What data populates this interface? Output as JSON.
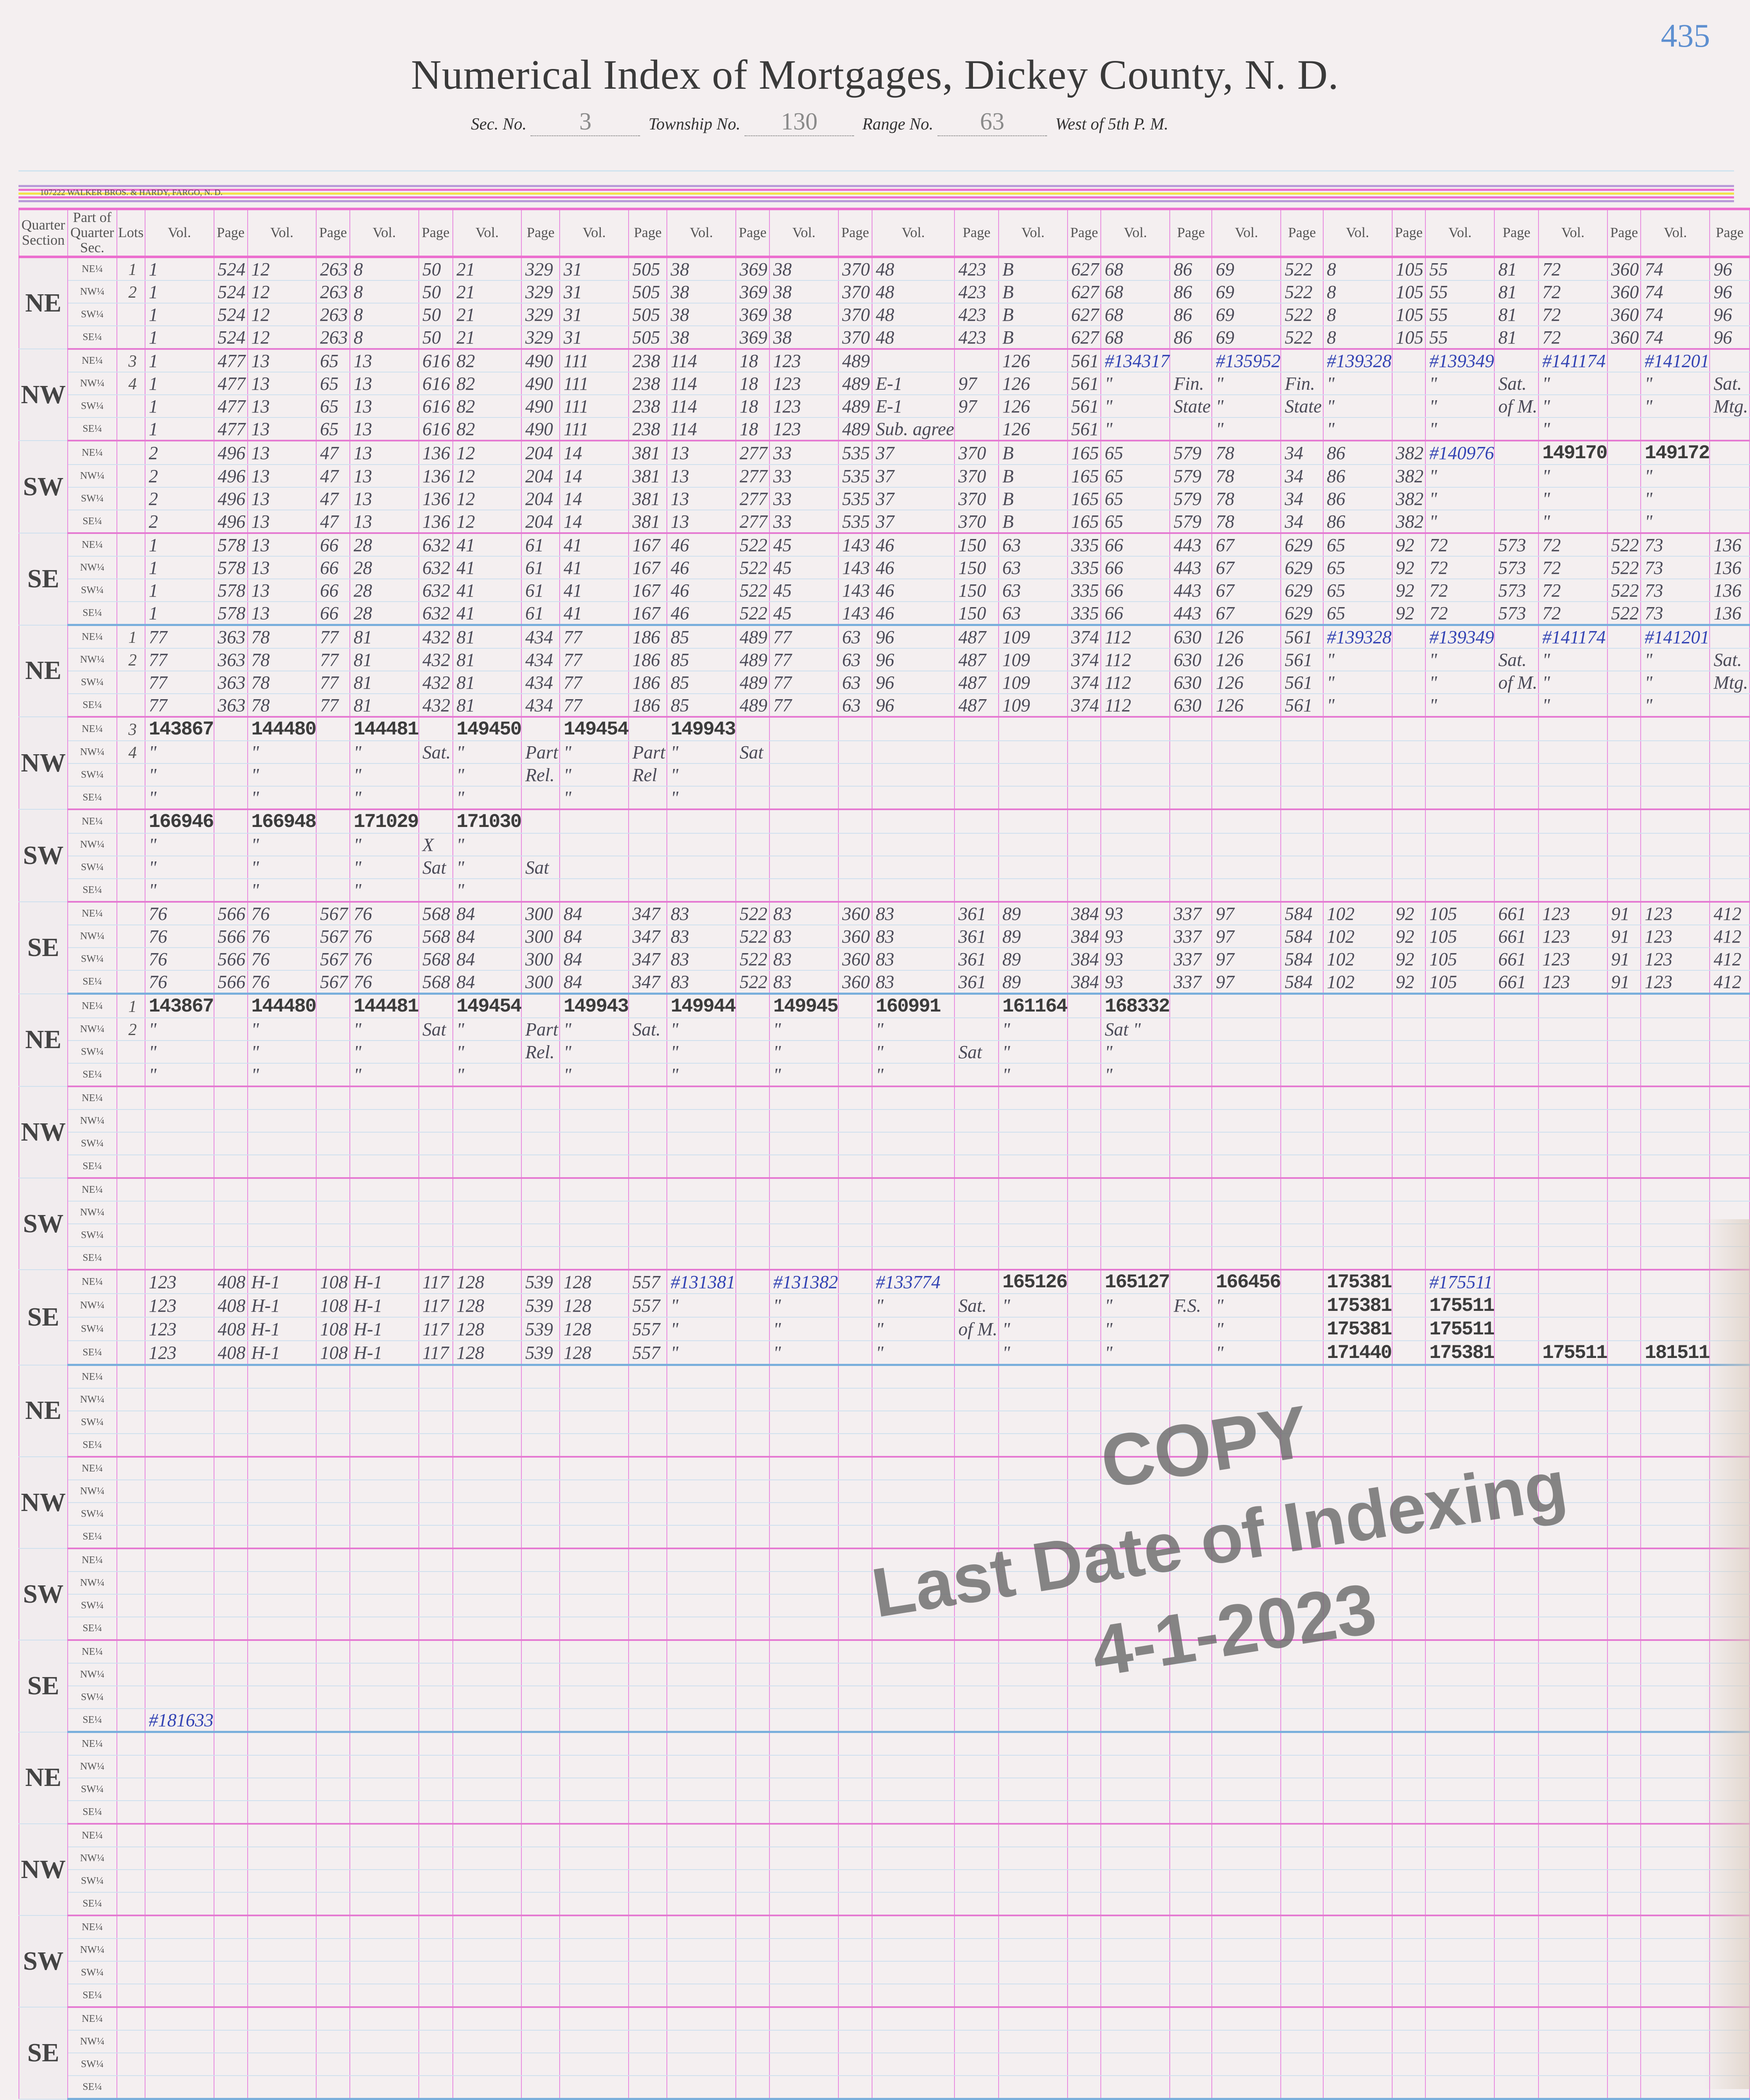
{
  "page_number": "435",
  "header": {
    "title": "Numerical Index of Mortgages, Dickey County, N. D.",
    "sec_label": "Sec. No.",
    "sec_value": "3",
    "township_label": "Township No.",
    "township_value": "130",
    "range_label": "Range No.",
    "range_value": "63",
    "meridian": "West of 5th P. M."
  },
  "printer": "107222   WALKER BROS. & HARDY, FARGO, N. D.",
  "stripe_colors": [
    "#b89ad8",
    "#ec6fcf",
    "#f2e24a",
    "#ec6fcf",
    "#b89ad8"
  ],
  "columns": {
    "quarter_section": "Quarter Section",
    "part": "Part of Quarter Sec.",
    "lots": "Lots",
    "vol": "Vol.",
    "page": "Page"
  },
  "parts": [
    "NE¼",
    "NW¼",
    "SW¼",
    "SE¼"
  ],
  "blocks": [
    {
      "quarter": "NE",
      "rows": [
        [
          "1",
          "1",
          "524",
          "12",
          "263",
          "8",
          "50",
          "21",
          "329",
          "31",
          "505",
          "38",
          "369",
          "38",
          "370",
          "48",
          "423",
          "B",
          "627",
          "68",
          "86",
          "69",
          "522",
          "8",
          "105",
          "55",
          "81",
          "72",
          "360",
          "74",
          "96"
        ],
        [
          "2",
          "1",
          "524",
          "12",
          "263",
          "8",
          "50",
          "21",
          "329",
          "31",
          "505",
          "38",
          "369",
          "38",
          "370",
          "48",
          "423",
          "B",
          "627",
          "68",
          "86",
          "69",
          "522",
          "8",
          "105",
          "55",
          "81",
          "72",
          "360",
          "74",
          "96"
        ],
        [
          "",
          "1",
          "524",
          "12",
          "263",
          "8",
          "50",
          "21",
          "329",
          "31",
          "505",
          "38",
          "369",
          "38",
          "370",
          "48",
          "423",
          "B",
          "627",
          "68",
          "86",
          "69",
          "522",
          "8",
          "105",
          "55",
          "81",
          "72",
          "360",
          "74",
          "96"
        ],
        [
          "",
          "1",
          "524",
          "12",
          "263",
          "8",
          "50",
          "21",
          "329",
          "31",
          "505",
          "38",
          "369",
          "38",
          "370",
          "48",
          "423",
          "B",
          "627",
          "68",
          "86",
          "69",
          "522",
          "8",
          "105",
          "55",
          "81",
          "72",
          "360",
          "74",
          "96"
        ]
      ]
    },
    {
      "quarter": "NW",
      "rows": [
        [
          "3",
          "1",
          "477",
          "13",
          "65",
          "13",
          "616",
          "82",
          "490",
          "111",
          "238",
          "114",
          "18",
          "123",
          "489",
          "",
          "",
          "126",
          "561",
          "#134317",
          "",
          "#135952",
          "",
          "#139328",
          "",
          "#139349",
          "",
          "#141174",
          "",
          "#141201",
          ""
        ],
        [
          "4",
          "1",
          "477",
          "13",
          "65",
          "13",
          "616",
          "82",
          "490",
          "111",
          "238",
          "114",
          "18",
          "123",
          "489",
          "E-1",
          "97",
          "126",
          "561",
          "\"",
          "Fin.",
          "\"",
          "Fin.",
          "\"",
          "",
          "\"",
          "Sat.",
          "\"",
          "",
          "\"",
          "Sat."
        ],
        [
          "",
          "1",
          "477",
          "13",
          "65",
          "13",
          "616",
          "82",
          "490",
          "111",
          "238",
          "114",
          "18",
          "123",
          "489",
          "E-1",
          "97",
          "126",
          "561",
          "\"",
          "State",
          "\"",
          "State",
          "\"",
          "",
          "\"",
          "of M.",
          "\"",
          "",
          "\"",
          "Mtg."
        ],
        [
          "",
          "1",
          "477",
          "13",
          "65",
          "13",
          "616",
          "82",
          "490",
          "111",
          "238",
          "114",
          "18",
          "123",
          "489",
          "Sub. agree",
          "",
          "126",
          "561",
          "\"",
          "",
          "\"",
          "",
          "\"",
          "",
          "\"",
          "",
          "\"",
          "",
          ""
        ]
      ]
    },
    {
      "quarter": "SW",
      "rows": [
        [
          "",
          "2",
          "496",
          "13",
          "47",
          "13",
          "136",
          "12",
          "204",
          "14",
          "381",
          "13",
          "277",
          "33",
          "535",
          "37",
          "370",
          "B",
          "165",
          "65",
          "579",
          "78",
          "34",
          "86",
          "382",
          "#140976",
          "",
          "149170",
          "",
          "149172",
          ""
        ],
        [
          "",
          "2",
          "496",
          "13",
          "47",
          "13",
          "136",
          "12",
          "204",
          "14",
          "381",
          "13",
          "277",
          "33",
          "535",
          "37",
          "370",
          "B",
          "165",
          "65",
          "579",
          "78",
          "34",
          "86",
          "382",
          "\"",
          "",
          "\"",
          "",
          "\"",
          ""
        ],
        [
          "",
          "2",
          "496",
          "13",
          "47",
          "13",
          "136",
          "12",
          "204",
          "14",
          "381",
          "13",
          "277",
          "33",
          "535",
          "37",
          "370",
          "B",
          "165",
          "65",
          "579",
          "78",
          "34",
          "86",
          "382",
          "\"",
          "",
          "\"",
          "",
          "\"",
          ""
        ],
        [
          "",
          "2",
          "496",
          "13",
          "47",
          "13",
          "136",
          "12",
          "204",
          "14",
          "381",
          "13",
          "277",
          "33",
          "535",
          "37",
          "370",
          "B",
          "165",
          "65",
          "579",
          "78",
          "34",
          "86",
          "382",
          "\"",
          "",
          "\"",
          "",
          "\"",
          ""
        ]
      ]
    },
    {
      "quarter": "SE",
      "rows": [
        [
          "",
          "1",
          "578",
          "13",
          "66",
          "28",
          "632",
          "41",
          "61",
          "41",
          "167",
          "46",
          "522",
          "45",
          "143",
          "46",
          "150",
          "63",
          "335",
          "66",
          "443",
          "67",
          "629",
          "65",
          "92",
          "72",
          "573",
          "72",
          "522",
          "73",
          "136"
        ],
        [
          "",
          "1",
          "578",
          "13",
          "66",
          "28",
          "632",
          "41",
          "61",
          "41",
          "167",
          "46",
          "522",
          "45",
          "143",
          "46",
          "150",
          "63",
          "335",
          "66",
          "443",
          "67",
          "629",
          "65",
          "92",
          "72",
          "573",
          "72",
          "522",
          "73",
          "136"
        ],
        [
          "",
          "1",
          "578",
          "13",
          "66",
          "28",
          "632",
          "41",
          "61",
          "41",
          "167",
          "46",
          "522",
          "45",
          "143",
          "46",
          "150",
          "63",
          "335",
          "66",
          "443",
          "67",
          "629",
          "65",
          "92",
          "72",
          "573",
          "72",
          "522",
          "73",
          "136"
        ],
        [
          "",
          "1",
          "578",
          "13",
          "66",
          "28",
          "632",
          "41",
          "61",
          "41",
          "167",
          "46",
          "522",
          "45",
          "143",
          "46",
          "150",
          "63",
          "335",
          "66",
          "443",
          "67",
          "629",
          "65",
          "92",
          "72",
          "573",
          "72",
          "522",
          "73",
          "136"
        ]
      ]
    },
    {
      "quarter": "NE",
      "rows": [
        [
          "1",
          "77",
          "363",
          "78",
          "77",
          "81",
          "432",
          "81",
          "434",
          "77",
          "186",
          "85",
          "489",
          "77",
          "63",
          "96",
          "487",
          "109",
          "374",
          "112",
          "630",
          "126",
          "561",
          "#139328",
          "",
          "#139349",
          "",
          "#141174",
          "",
          "#141201",
          ""
        ],
        [
          "2",
          "77",
          "363",
          "78",
          "77",
          "81",
          "432",
          "81",
          "434",
          "77",
          "186",
          "85",
          "489",
          "77",
          "63",
          "96",
          "487",
          "109",
          "374",
          "112",
          "630",
          "126",
          "561",
          "\"",
          "",
          "\"",
          "Sat.",
          "\"",
          "",
          "\"",
          "Sat."
        ],
        [
          "",
          "77",
          "363",
          "78",
          "77",
          "81",
          "432",
          "81",
          "434",
          "77",
          "186",
          "85",
          "489",
          "77",
          "63",
          "96",
          "487",
          "109",
          "374",
          "112",
          "630",
          "126",
          "561",
          "\"",
          "",
          "\"",
          "of M.",
          "\"",
          "",
          "\"",
          "Mtg."
        ],
        [
          "",
          "77",
          "363",
          "78",
          "77",
          "81",
          "432",
          "81",
          "434",
          "77",
          "186",
          "85",
          "489",
          "77",
          "63",
          "96",
          "487",
          "109",
          "374",
          "112",
          "630",
          "126",
          "561",
          "\"",
          "",
          "\"",
          "",
          "\"",
          "",
          "\"",
          ""
        ]
      ]
    },
    {
      "quarter": "NW",
      "rows": [
        [
          "3",
          "143867",
          "",
          "144480",
          "",
          "144481",
          "",
          "149450",
          "",
          "149454",
          "",
          "149943",
          ""
        ],
        [
          "4",
          "\"",
          "",
          "\"",
          "",
          "\"",
          "Sat.",
          "\"",
          "Part",
          "\"",
          "Part",
          "\"",
          "Sat"
        ],
        [
          "",
          "\"",
          "",
          "\"",
          "",
          "\"",
          "",
          "\"",
          "Rel.",
          "\"",
          "Rel",
          "\"",
          ""
        ],
        [
          "",
          "\"",
          "",
          "\"",
          "",
          "\"",
          "",
          "\"",
          "",
          "\"",
          "",
          "\"",
          ""
        ]
      ]
    },
    {
      "quarter": "SW",
      "rows": [
        [
          "",
          "166946",
          "",
          "166948",
          "",
          "171029",
          "",
          "171030",
          ""
        ],
        [
          "",
          "\"",
          "",
          "\"",
          "",
          "\"",
          "X",
          "\"",
          ""
        ],
        [
          "",
          "\"",
          "",
          "\"",
          "",
          "\"",
          "Sat",
          "\"",
          "Sat"
        ],
        [
          "",
          "\"",
          "",
          "\"",
          "",
          "\"",
          "",
          "\"",
          ""
        ]
      ]
    },
    {
      "quarter": "SE",
      "rows": [
        [
          "",
          "76",
          "566",
          "76",
          "567",
          "76",
          "568",
          "84",
          "300",
          "84",
          "347",
          "83",
          "522",
          "83",
          "360",
          "83",
          "361",
          "89",
          "384",
          "93",
          "337",
          "97",
          "584",
          "102",
          "92",
          "105",
          "661",
          "123",
          "91",
          "123",
          "412"
        ],
        [
          "",
          "76",
          "566",
          "76",
          "567",
          "76",
          "568",
          "84",
          "300",
          "84",
          "347",
          "83",
          "522",
          "83",
          "360",
          "83",
          "361",
          "89",
          "384",
          "93",
          "337",
          "97",
          "584",
          "102",
          "92",
          "105",
          "661",
          "123",
          "91",
          "123",
          "412"
        ],
        [
          "",
          "76",
          "566",
          "76",
          "567",
          "76",
          "568",
          "84",
          "300",
          "84",
          "347",
          "83",
          "522",
          "83",
          "360",
          "83",
          "361",
          "89",
          "384",
          "93",
          "337",
          "97",
          "584",
          "102",
          "92",
          "105",
          "661",
          "123",
          "91",
          "123",
          "412"
        ],
        [
          "",
          "76",
          "566",
          "76",
          "567",
          "76",
          "568",
          "84",
          "300",
          "84",
          "347",
          "83",
          "522",
          "83",
          "360",
          "83",
          "361",
          "89",
          "384",
          "93",
          "337",
          "97",
          "584",
          "102",
          "92",
          "105",
          "661",
          "123",
          "91",
          "123",
          "412"
        ]
      ]
    },
    {
      "quarter": "NE",
      "rows": [
        [
          "1",
          "143867",
          "",
          "144480",
          "",
          "144481",
          "",
          "149454",
          "",
          "149943",
          "",
          "149944",
          "",
          "149945",
          "",
          "160991",
          "",
          "161164",
          "",
          "168332",
          ""
        ],
        [
          "2",
          "\"",
          "",
          "\"",
          "",
          "\"",
          "Sat",
          "\"",
          "Part",
          "\"",
          "Sat.",
          "\"",
          "",
          "\"",
          "",
          "\"",
          "",
          "\"",
          "",
          "Sat \"",
          ""
        ],
        [
          "",
          "\"",
          "",
          "\"",
          "",
          "\"",
          "",
          "\"",
          "Rel.",
          "\"",
          "",
          "\"",
          "",
          "\"",
          "",
          "\"",
          "Sat",
          "\"",
          "",
          "\"",
          ""
        ],
        [
          "",
          "\"",
          "",
          "\"",
          "",
          "\"",
          "",
          "\"",
          "",
          "\"",
          "",
          "\"",
          "",
          "\"",
          "",
          "\"",
          "",
          "\"",
          "",
          "\"",
          ""
        ]
      ]
    },
    {
      "quarter": "NW",
      "rows": [
        [],
        [],
        [],
        []
      ]
    },
    {
      "quarter": "SW",
      "rows": [
        [],
        [],
        [],
        []
      ]
    },
    {
      "quarter": "SE",
      "rows": [
        [
          "",
          "123",
          "408",
          "H-1",
          "108",
          "H-1",
          "117",
          "128",
          "539",
          "128",
          "557",
          "#131381",
          "",
          "#131382",
          "",
          "#133774",
          "",
          "165126",
          "",
          "165127",
          "",
          "166456",
          "",
          "175381",
          "",
          "#175511",
          ""
        ],
        [
          "",
          "123",
          "408",
          "H-1",
          "108",
          "H-1",
          "117",
          "128",
          "539",
          "128",
          "557",
          "\"",
          "",
          "\"",
          "",
          "\"",
          "Sat.",
          "\"",
          "",
          "\"",
          "F.S.",
          "\"",
          "",
          "175381",
          "",
          "175511",
          ""
        ],
        [
          "",
          "123",
          "408",
          "H-1",
          "108",
          "H-1",
          "117",
          "128",
          "539",
          "128",
          "557",
          "\"",
          "",
          "\"",
          "",
          "\"",
          "of M.",
          "\"",
          "",
          "\"",
          "",
          "\"",
          "",
          "175381",
          "",
          "175511",
          ""
        ],
        [
          "",
          "123",
          "408",
          "H-1",
          "108",
          "H-1",
          "117",
          "128",
          "539",
          "128",
          "557",
          "\"",
          "",
          "\"",
          "",
          "\"",
          "",
          "\"",
          "",
          "\"",
          "",
          "\"",
          "",
          "171440",
          "",
          "175381",
          "",
          "175511",
          "",
          "181511",
          ""
        ]
      ]
    },
    {
      "quarter": "NE",
      "rows": [
        [],
        [],
        [],
        []
      ]
    },
    {
      "quarter": "NW",
      "rows": [
        [],
        [],
        [],
        []
      ]
    },
    {
      "quarter": "SW",
      "rows": [
        [],
        [],
        [],
        []
      ]
    },
    {
      "quarter": "SE",
      "rows": [
        [],
        [],
        [],
        [
          "",
          "#181633"
        ]
      ]
    },
    {
      "quarter": "NE",
      "rows": [
        [],
        [],
        [],
        []
      ]
    },
    {
      "quarter": "NW",
      "rows": [
        [],
        [],
        [],
        []
      ]
    },
    {
      "quarter": "SW",
      "rows": [
        [],
        [],
        [],
        []
      ]
    },
    {
      "quarter": "SE",
      "rows": [
        [],
        [],
        [],
        []
      ]
    }
  ],
  "watermark": {
    "line1": "COPY",
    "line2": "Last Date of Indexing",
    "line3": "4-1-2023"
  }
}
